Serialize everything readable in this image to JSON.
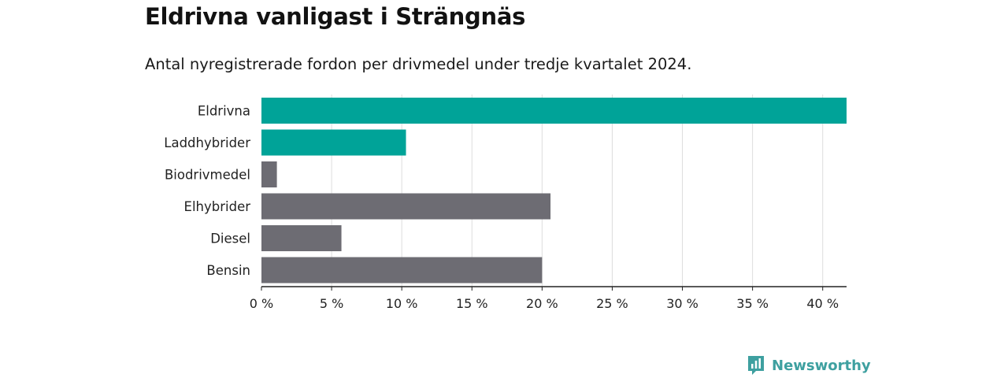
{
  "header": {
    "title": "Eldrivna vanligast i Strängnäs",
    "subtitle": "Antal nyregistrerade fordon per drivmedel under tredje kvartalet 2024."
  },
  "chart_data": {
    "type": "bar",
    "orientation": "horizontal",
    "categories": [
      "Eldrivna",
      "Laddhybrider",
      "Biodrivmedel",
      "Elhybrider",
      "Diesel",
      "Bensin"
    ],
    "values": [
      41.7,
      10.3,
      1.1,
      20.6,
      5.7,
      20.0
    ],
    "bar_colors": [
      "#00a398",
      "#00a398",
      "#6d6c73",
      "#6d6c73",
      "#6d6c73",
      "#6d6c73"
    ],
    "xlim": [
      0,
      41.7
    ],
    "xticks": [
      0,
      5,
      10,
      15,
      20,
      25,
      30,
      35,
      40
    ],
    "tick_suffix": " %",
    "grid": true,
    "colors": {
      "highlight": "#00a398",
      "default": "#6d6c73",
      "grid": "#dddddd",
      "axis": "#222222"
    }
  },
  "footer": {
    "brand": "Newsworthy",
    "brand_color": "#3ea0a0",
    "icon": "newsworthy-logo-icon"
  }
}
